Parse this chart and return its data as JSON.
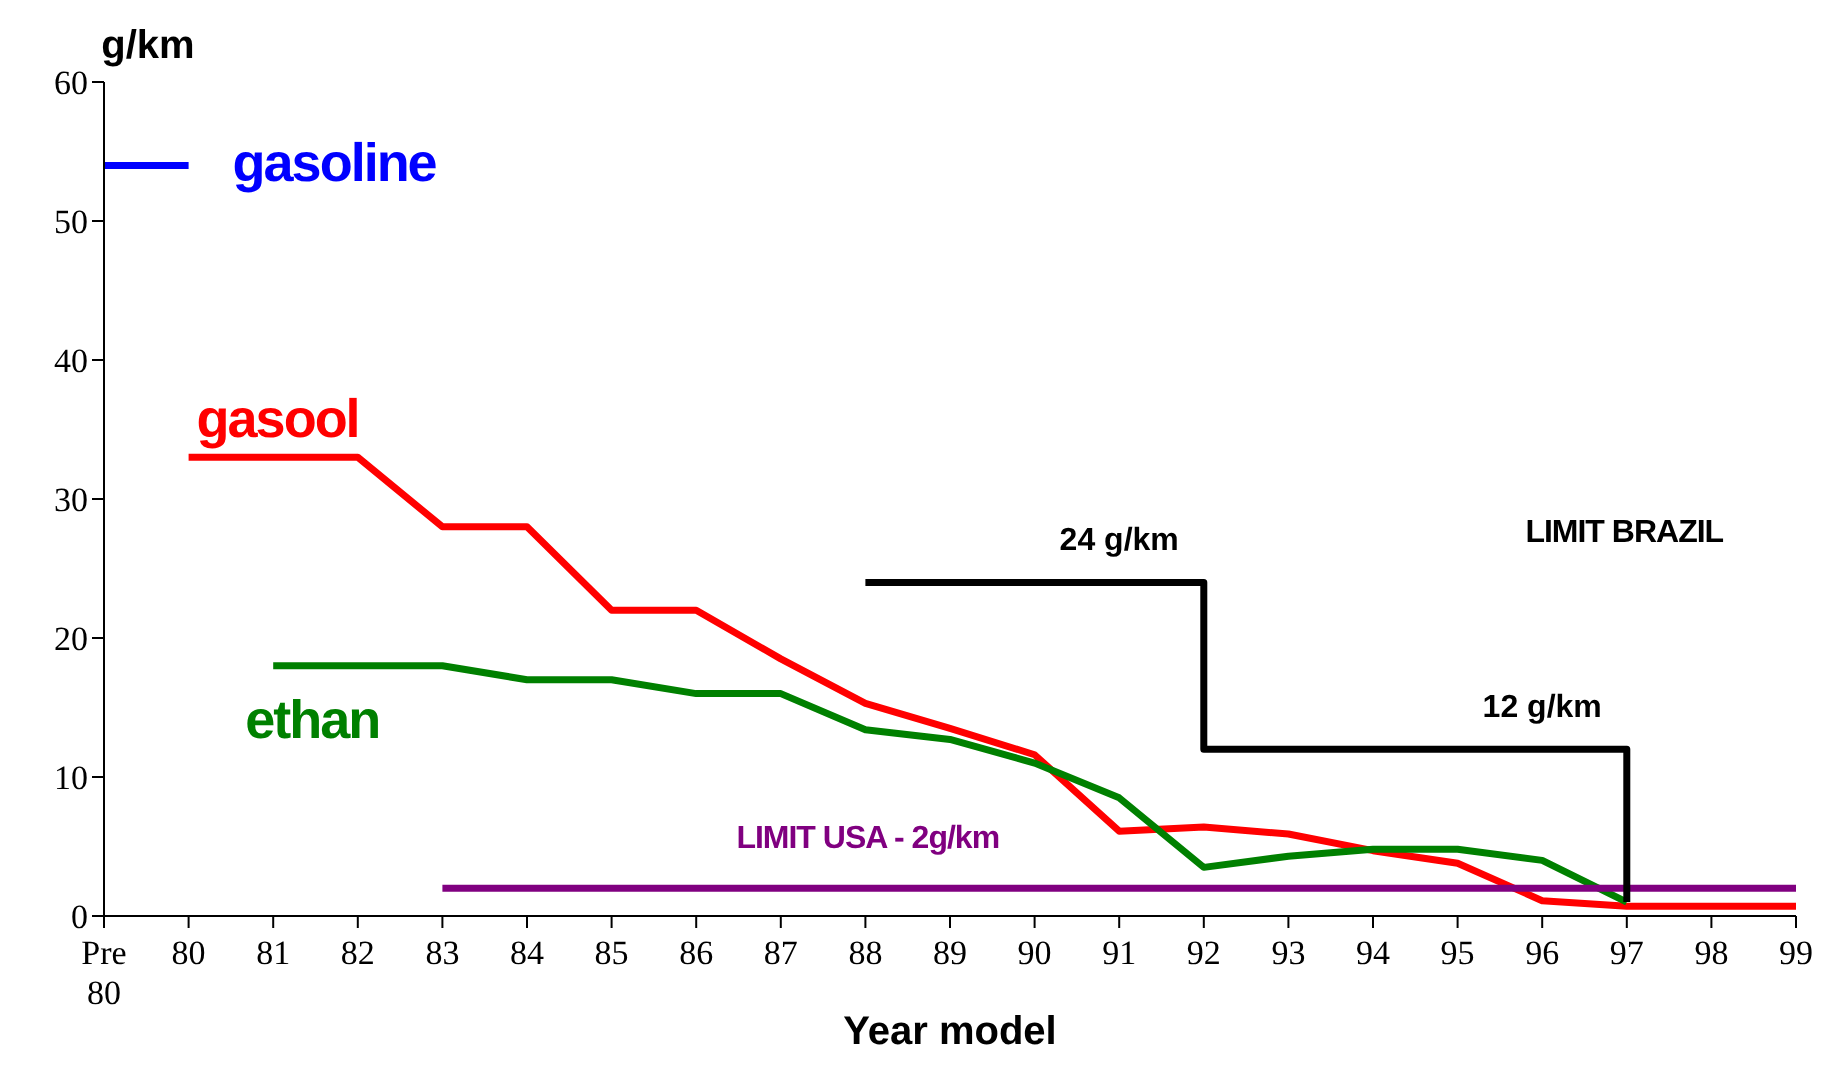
{
  "chart_data": {
    "type": "line",
    "ylabel": "g/km",
    "xlabel": "Year model",
    "categories": [
      "Pre 80",
      "80",
      "81",
      "82",
      "83",
      "84",
      "85",
      "86",
      "87",
      "88",
      "89",
      "90",
      "91",
      "92",
      "93",
      "94",
      "95",
      "96",
      "97",
      "98",
      "99"
    ],
    "series": [
      {
        "name": "gasoline",
        "color": "#0000ff",
        "values": [
          54,
          54,
          null,
          null,
          null,
          null,
          null,
          null,
          null,
          null,
          null,
          null,
          null,
          null,
          null,
          null,
          null,
          null,
          null,
          null,
          null
        ]
      },
      {
        "name": "gasool",
        "color": "#ff0000",
        "values": [
          null,
          33,
          33,
          33,
          28,
          28,
          22,
          22,
          18.5,
          15.3,
          13.5,
          11.6,
          6.1,
          6.4,
          5.9,
          4.7,
          3.8,
          1.1,
          0.7,
          0.7,
          0.7
        ]
      },
      {
        "name": "ethan",
        "color": "#008000",
        "values": [
          null,
          null,
          18,
          18,
          18,
          17,
          17,
          16,
          16,
          13.4,
          12.7,
          11,
          8.5,
          3.5,
          4.3,
          4.8,
          4.8,
          4,
          1,
          null,
          null
        ]
      },
      {
        "name": "LIMIT USA - 2g/km",
        "color": "#800080",
        "values": [
          null,
          null,
          null,
          null,
          2,
          2,
          2,
          2,
          2,
          2,
          2,
          2,
          2,
          2,
          2,
          2,
          2,
          2,
          2,
          2,
          2
        ]
      },
      {
        "name": "LIMIT BRAZIL",
        "type": "step",
        "color": "#000000",
        "values": [
          null,
          null,
          null,
          null,
          null,
          null,
          null,
          null,
          null,
          24,
          24,
          24,
          24,
          12,
          12,
          12,
          12,
          12,
          1,
          null,
          null
        ]
      }
    ],
    "annotations": [
      {
        "text": "24 g/km",
        "x": "91",
        "y": 24
      },
      {
        "text": "12 g/km",
        "x": "96",
        "y": 12
      }
    ],
    "ylim": [
      0,
      60
    ],
    "yticks": [
      0,
      10,
      20,
      30,
      40,
      50,
      60
    ],
    "grid": false,
    "legend": false,
    "marker": "none",
    "line_style": "solid"
  }
}
